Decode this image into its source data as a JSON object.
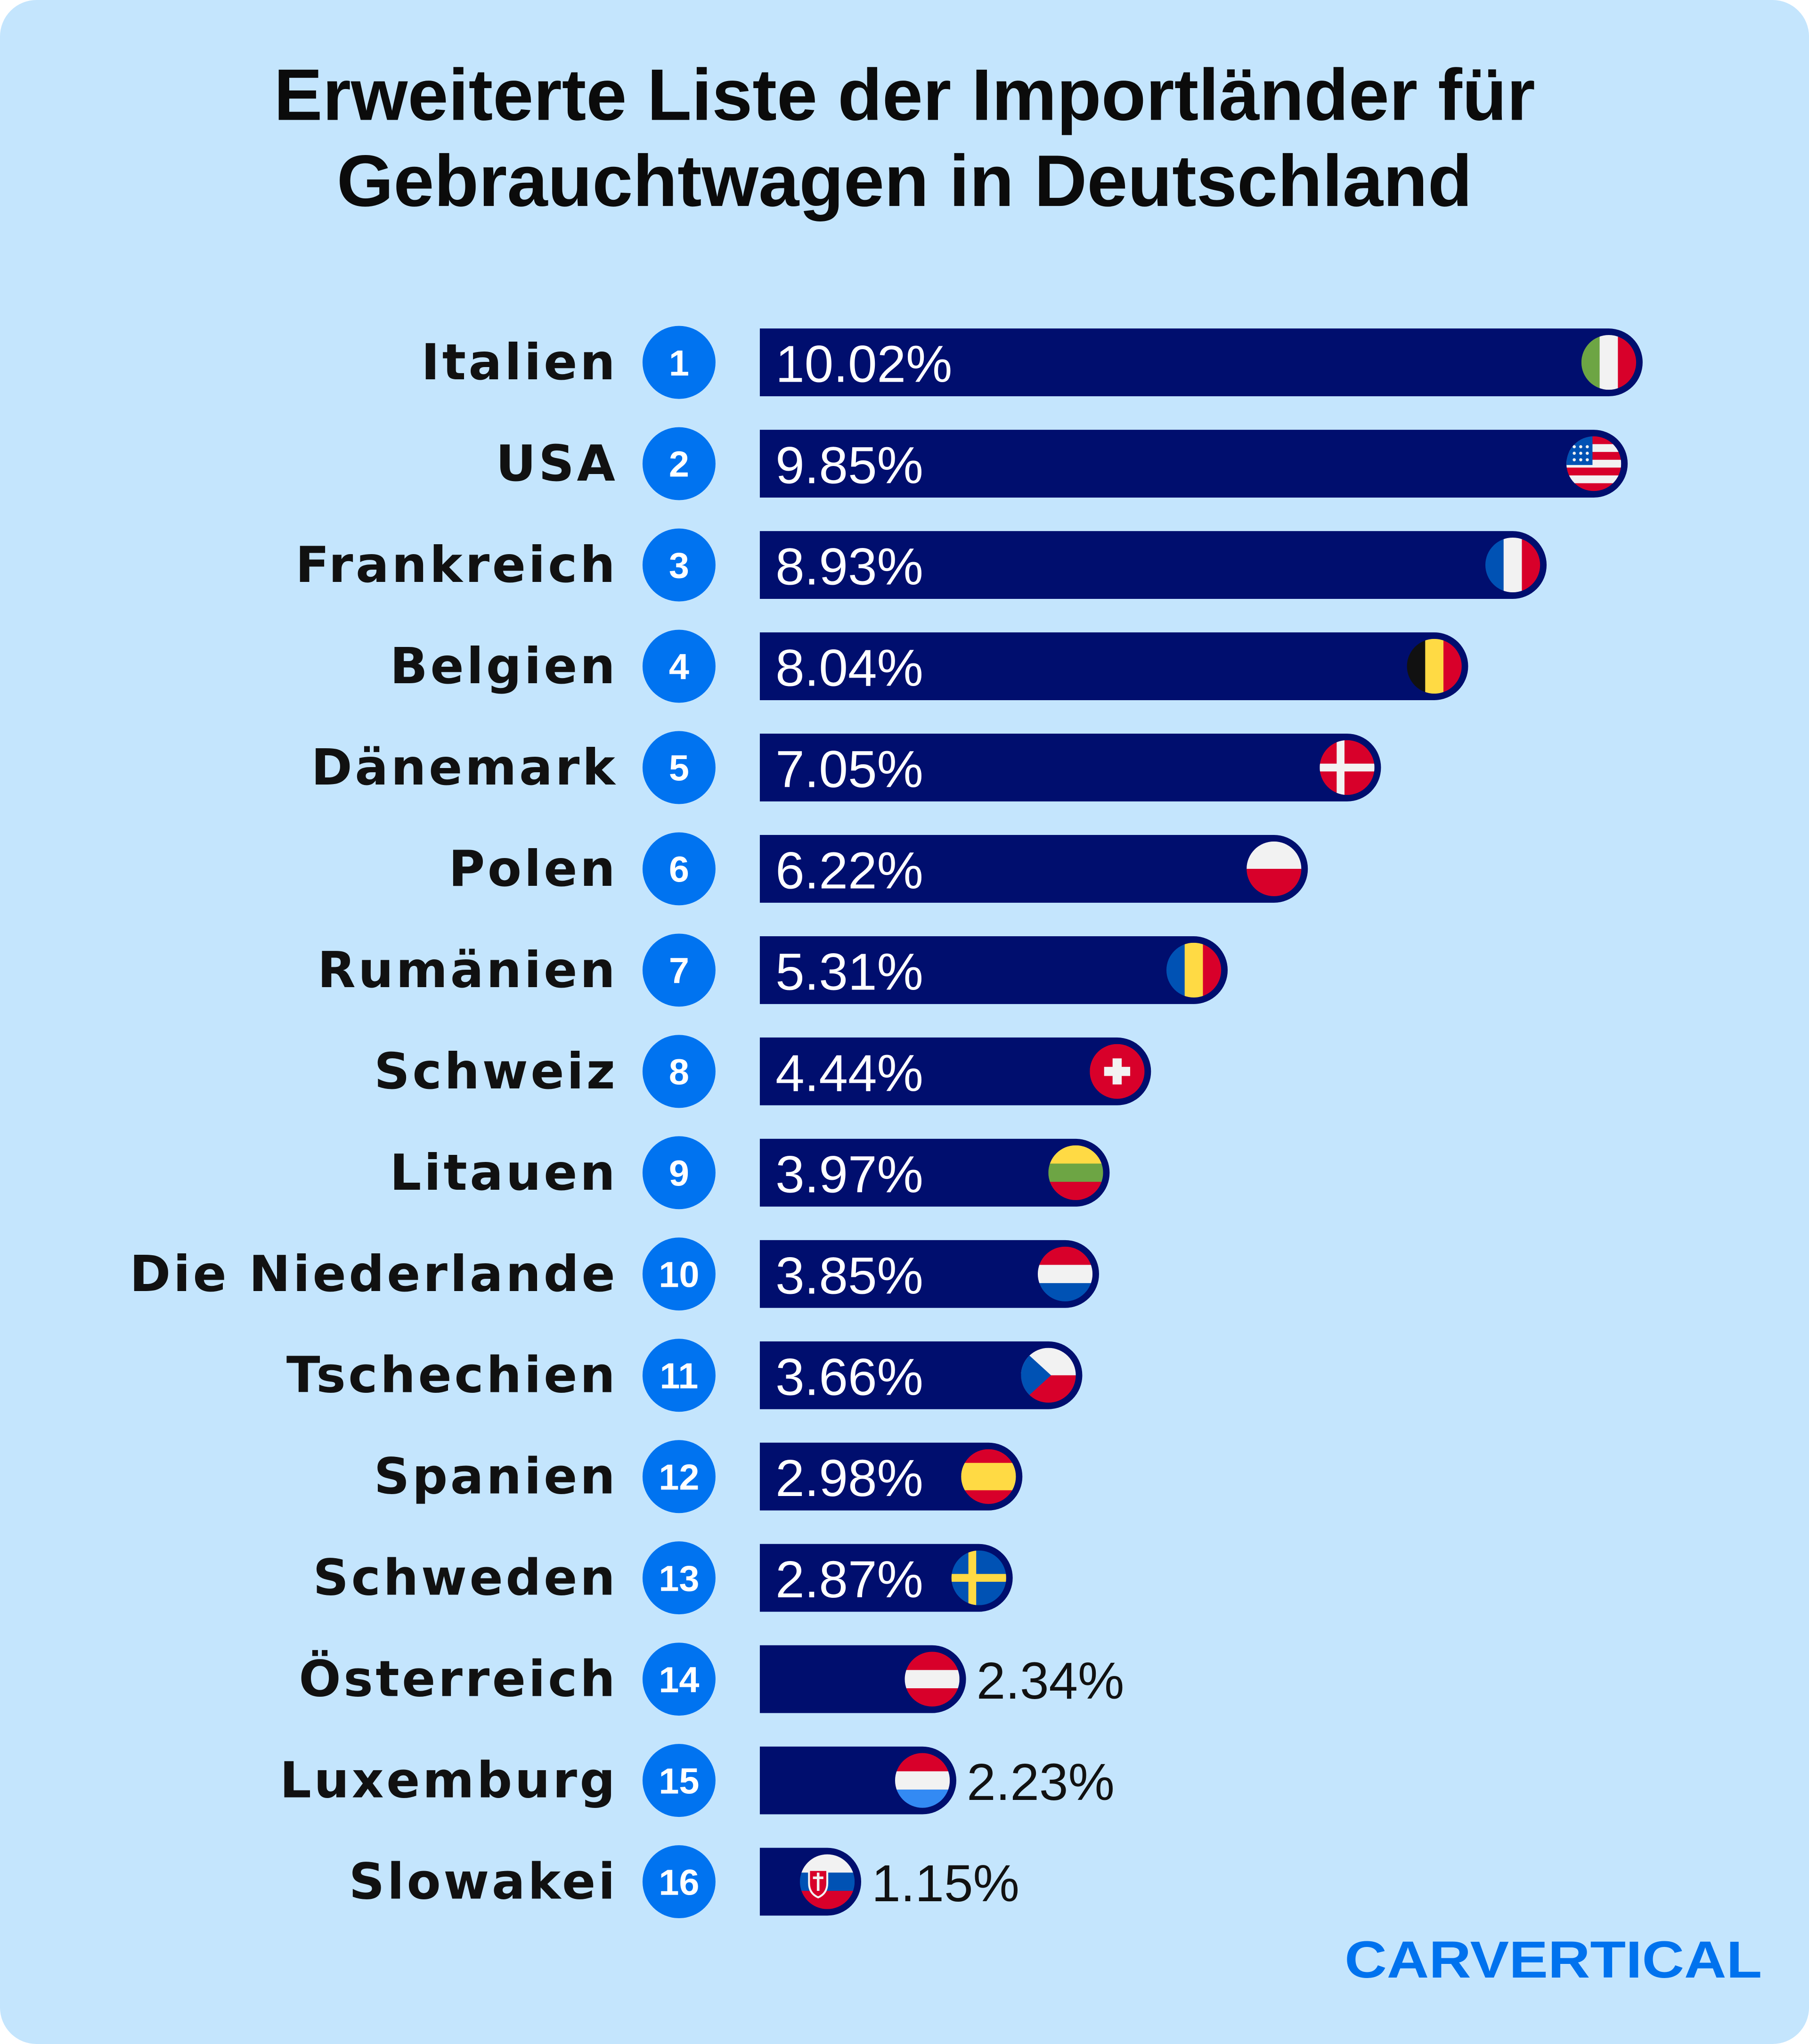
{
  "title_line1": "Erweiterte Liste der Importländer für",
  "title_line2": "Gebrauchtwagen in Deutschland",
  "logo": "CARVERTICAL",
  "colors": {
    "background": "#c4e5fd",
    "bar": "#000e6e",
    "badge": "#0073f0",
    "logo": "#0072ee"
  },
  "chart_data": {
    "type": "bar",
    "orientation": "horizontal",
    "title": "Erweiterte Liste der Importländer für Gebrauchtwagen in Deutschland",
    "unit": "%",
    "categories": [
      "Italien",
      "USA",
      "Frankreich",
      "Belgien",
      "Dänemark",
      "Polen",
      "Rumänien",
      "Schweiz",
      "Litauen",
      "Die Niederlande",
      "Tschechien",
      "Spanien",
      "Schweden",
      "Österreich",
      "Luxemburg",
      "Slowakei"
    ],
    "ranks": [
      "1",
      "2",
      "3",
      "4",
      "5",
      "6",
      "7",
      "8",
      "9",
      "10",
      "11",
      "12",
      "13",
      "14",
      "15",
      "16"
    ],
    "values": [
      10.02,
      9.85,
      8.93,
      8.04,
      7.05,
      6.22,
      5.31,
      4.44,
      3.97,
      3.85,
      3.66,
      2.98,
      2.87,
      2.34,
      2.23,
      1.15
    ],
    "value_labels": [
      "10.02%",
      "9.85%",
      "8.93%",
      "8.04%",
      "7.05%",
      "6.22%",
      "5.31%",
      "4.44%",
      "3.97%",
      "3.85%",
      "3.66%",
      "2.98%",
      "2.87%",
      "2.34%",
      "2.23%",
      "1.15%"
    ],
    "flags": [
      "italy-flag",
      "usa-flag",
      "france-flag",
      "belgium-flag",
      "denmark-flag",
      "poland-flag",
      "romania-flag",
      "switzerland-flag",
      "lithuania-flag",
      "netherlands-flag",
      "czechia-flag",
      "spain-flag",
      "sweden-flag",
      "austria-flag",
      "luxembourg-flag",
      "slovakia-flag"
    ],
    "grid": false,
    "legend": "none"
  }
}
